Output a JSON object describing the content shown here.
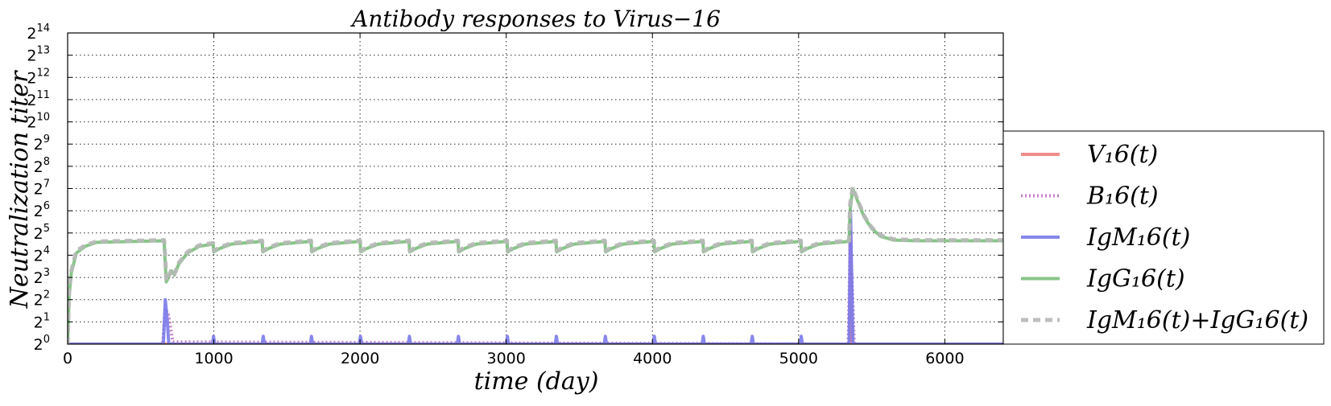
{
  "chart_data": {
    "type": "line",
    "title": "Antibody responses to Virus−16",
    "xlabel": "time (day)",
    "ylabel": "Neutralization titer",
    "xlim": [
      0,
      6400
    ],
    "ylim_log2": [
      0,
      14
    ],
    "y_scale": "log2",
    "grid": true,
    "legend_placement": "right, outside plot area",
    "x_ticks": [
      "0",
      "1000",
      "2000",
      "3000",
      "4000",
      "5000",
      "6000"
    ],
    "x_tick_values": [
      0,
      1000,
      2000,
      3000,
      4000,
      5000,
      6000
    ],
    "y_ticks": [
      {
        "base": "2",
        "exp": "0"
      },
      {
        "base": "2",
        "exp": "1"
      },
      {
        "base": "2",
        "exp": "2"
      },
      {
        "base": "2",
        "exp": "3"
      },
      {
        "base": "2",
        "exp": "4"
      },
      {
        "base": "2",
        "exp": "5"
      },
      {
        "base": "2",
        "exp": "6"
      },
      {
        "base": "2",
        "exp": "7"
      },
      {
        "base": "2",
        "exp": "8"
      },
      {
        "base": "2",
        "exp": "9"
      },
      {
        "base": "2",
        "exp": "10"
      },
      {
        "base": "2",
        "exp": "11"
      },
      {
        "base": "2",
        "exp": "12"
      },
      {
        "base": "2",
        "exp": "13"
      },
      {
        "base": "2",
        "exp": "14"
      }
    ],
    "series": [
      {
        "name": "V₁6(t)",
        "color": "#f08080",
        "style": "solid",
        "points": [
          [
            0,
            0
          ],
          [
            5350,
            0
          ],
          [
            5352,
            5.2
          ],
          [
            5358,
            4.5
          ],
          [
            5362,
            0
          ],
          [
            6400,
            0
          ]
        ]
      },
      {
        "name": "B₁6(t)",
        "color": "#bf74c4",
        "style": "dotted",
        "points": [
          [
            0,
            0
          ],
          [
            650,
            0
          ],
          [
            668,
            1.6
          ],
          [
            690,
            1.3
          ],
          [
            720,
            0.1
          ],
          [
            5340,
            0
          ],
          [
            5352,
            4.5
          ],
          [
            5365,
            3.0
          ],
          [
            5380,
            0
          ],
          [
            6400,
            0
          ]
        ]
      },
      {
        "name": "IgM₁6(t)",
        "color": "#7b7bea",
        "style": "solid",
        "points": [
          [
            0,
            0
          ],
          [
            655,
            0
          ],
          [
            668,
            2.0
          ],
          [
            680,
            1.2
          ],
          [
            692,
            0
          ],
          [
            990,
            0
          ],
          [
            998,
            0.35
          ],
          [
            1006,
            0
          ],
          [
            1330,
            0
          ],
          [
            1338,
            0.35
          ],
          [
            1346,
            0
          ],
          [
            1660,
            0
          ],
          [
            1668,
            0.35
          ],
          [
            1676,
            0
          ],
          [
            1995,
            0
          ],
          [
            2003,
            0.35
          ],
          [
            2011,
            0
          ],
          [
            2330,
            0
          ],
          [
            2338,
            0.35
          ],
          [
            2346,
            0
          ],
          [
            2665,
            0
          ],
          [
            2673,
            0.35
          ],
          [
            2681,
            0
          ],
          [
            3000,
            0
          ],
          [
            3008,
            0.35
          ],
          [
            3016,
            0
          ],
          [
            3335,
            0
          ],
          [
            3343,
            0.35
          ],
          [
            3351,
            0
          ],
          [
            3670,
            0
          ],
          [
            3678,
            0.35
          ],
          [
            3686,
            0
          ],
          [
            4005,
            0
          ],
          [
            4013,
            0.35
          ],
          [
            4021,
            0
          ],
          [
            4340,
            0
          ],
          [
            4348,
            0.35
          ],
          [
            4356,
            0
          ],
          [
            4675,
            0
          ],
          [
            4683,
            0.35
          ],
          [
            4691,
            0
          ],
          [
            5010,
            0
          ],
          [
            5018,
            0.35
          ],
          [
            5026,
            0
          ],
          [
            5345,
            0
          ],
          [
            5355,
            6.0
          ],
          [
            5362,
            3.5
          ],
          [
            5372,
            0
          ],
          [
            6400,
            0
          ]
        ]
      },
      {
        "name": "IgG₁6(t)",
        "color": "#7bbf7b",
        "style": "solid",
        "points": [
          [
            0,
            0
          ],
          [
            10,
            2.2
          ],
          [
            25,
            3.2
          ],
          [
            60,
            4.1
          ],
          [
            120,
            4.4
          ],
          [
            200,
            4.58
          ],
          [
            660,
            4.65
          ],
          [
            665,
            3.9
          ],
          [
            675,
            2.8
          ],
          [
            690,
            3.0
          ],
          [
            710,
            3.3
          ],
          [
            730,
            3.1
          ],
          [
            760,
            3.6
          ],
          [
            820,
            4.1
          ],
          [
            900,
            4.4
          ],
          [
            995,
            4.5
          ],
          [
            1000,
            4.15
          ],
          [
            1040,
            4.3
          ],
          [
            1120,
            4.5
          ],
          [
            1330,
            4.62
          ],
          [
            1335,
            4.15
          ],
          [
            1375,
            4.3
          ],
          [
            1455,
            4.5
          ],
          [
            1665,
            4.62
          ],
          [
            1670,
            4.15
          ],
          [
            1710,
            4.3
          ],
          [
            1790,
            4.5
          ],
          [
            2000,
            4.62
          ],
          [
            2005,
            4.15
          ],
          [
            2045,
            4.3
          ],
          [
            2125,
            4.5
          ],
          [
            2335,
            4.62
          ],
          [
            2340,
            4.15
          ],
          [
            2380,
            4.3
          ],
          [
            2460,
            4.5
          ],
          [
            2670,
            4.62
          ],
          [
            2675,
            4.15
          ],
          [
            2715,
            4.3
          ],
          [
            2795,
            4.5
          ],
          [
            3005,
            4.62
          ],
          [
            3010,
            4.15
          ],
          [
            3050,
            4.3
          ],
          [
            3130,
            4.5
          ],
          [
            3340,
            4.62
          ],
          [
            3345,
            4.15
          ],
          [
            3385,
            4.3
          ],
          [
            3465,
            4.5
          ],
          [
            3675,
            4.62
          ],
          [
            3680,
            4.15
          ],
          [
            3720,
            4.3
          ],
          [
            3800,
            4.5
          ],
          [
            4010,
            4.62
          ],
          [
            4015,
            4.15
          ],
          [
            4055,
            4.3
          ],
          [
            4135,
            4.5
          ],
          [
            4345,
            4.62
          ],
          [
            4350,
            4.15
          ],
          [
            4390,
            4.3
          ],
          [
            4470,
            4.5
          ],
          [
            4680,
            4.62
          ],
          [
            4685,
            4.15
          ],
          [
            4725,
            4.3
          ],
          [
            4805,
            4.5
          ],
          [
            5015,
            4.62
          ],
          [
            5020,
            4.15
          ],
          [
            5060,
            4.3
          ],
          [
            5140,
            4.5
          ],
          [
            5345,
            4.62
          ],
          [
            5352,
            6.0
          ],
          [
            5370,
            7.0
          ],
          [
            5400,
            6.5
          ],
          [
            5450,
            5.7
          ],
          [
            5500,
            5.2
          ],
          [
            5560,
            4.85
          ],
          [
            5650,
            4.68
          ],
          [
            5800,
            4.65
          ],
          [
            6400,
            4.65
          ]
        ]
      },
      {
        "name": "IgM₁6(t)+IgG₁6(t)",
        "color": "#b8b8b8",
        "style": "dashed",
        "points": [
          [
            0,
            0
          ],
          [
            10,
            2.3
          ],
          [
            25,
            3.3
          ],
          [
            60,
            4.2
          ],
          [
            120,
            4.45
          ],
          [
            200,
            4.62
          ],
          [
            660,
            4.68
          ],
          [
            668,
            3.9
          ],
          [
            675,
            2.85
          ],
          [
            690,
            3.05
          ],
          [
            710,
            3.35
          ],
          [
            730,
            3.15
          ],
          [
            760,
            3.65
          ],
          [
            820,
            4.15
          ],
          [
            900,
            4.45
          ],
          [
            995,
            4.55
          ],
          [
            1000,
            4.2
          ],
          [
            1040,
            4.35
          ],
          [
            1120,
            4.55
          ],
          [
            1330,
            4.66
          ],
          [
            1335,
            4.2
          ],
          [
            1375,
            4.35
          ],
          [
            1455,
            4.55
          ],
          [
            1665,
            4.66
          ],
          [
            1670,
            4.2
          ],
          [
            1710,
            4.35
          ],
          [
            1790,
            4.55
          ],
          [
            2000,
            4.66
          ],
          [
            2005,
            4.2
          ],
          [
            2045,
            4.35
          ],
          [
            2125,
            4.55
          ],
          [
            2335,
            4.66
          ],
          [
            2340,
            4.2
          ],
          [
            2380,
            4.35
          ],
          [
            2460,
            4.55
          ],
          [
            2670,
            4.66
          ],
          [
            2675,
            4.2
          ],
          [
            2715,
            4.35
          ],
          [
            2795,
            4.55
          ],
          [
            3005,
            4.66
          ],
          [
            3010,
            4.2
          ],
          [
            3050,
            4.35
          ],
          [
            3130,
            4.55
          ],
          [
            3340,
            4.66
          ],
          [
            3345,
            4.2
          ],
          [
            3385,
            4.35
          ],
          [
            3465,
            4.55
          ],
          [
            3675,
            4.66
          ],
          [
            3680,
            4.2
          ],
          [
            3720,
            4.35
          ],
          [
            3800,
            4.55
          ],
          [
            4010,
            4.66
          ],
          [
            4015,
            4.2
          ],
          [
            4055,
            4.35
          ],
          [
            4135,
            4.55
          ],
          [
            4345,
            4.66
          ],
          [
            4350,
            4.2
          ],
          [
            4390,
            4.35
          ],
          [
            4470,
            4.55
          ],
          [
            4680,
            4.66
          ],
          [
            4685,
            4.2
          ],
          [
            4725,
            4.35
          ],
          [
            4805,
            4.55
          ],
          [
            5015,
            4.66
          ],
          [
            5020,
            4.2
          ],
          [
            5060,
            4.35
          ],
          [
            5140,
            4.55
          ],
          [
            5345,
            4.66
          ],
          [
            5352,
            6.3
          ],
          [
            5370,
            7.05
          ],
          [
            5400,
            6.55
          ],
          [
            5450,
            5.75
          ],
          [
            5500,
            5.25
          ],
          [
            5560,
            4.9
          ],
          [
            5650,
            4.72
          ],
          [
            5800,
            4.68
          ],
          [
            6400,
            4.68
          ]
        ]
      }
    ]
  }
}
